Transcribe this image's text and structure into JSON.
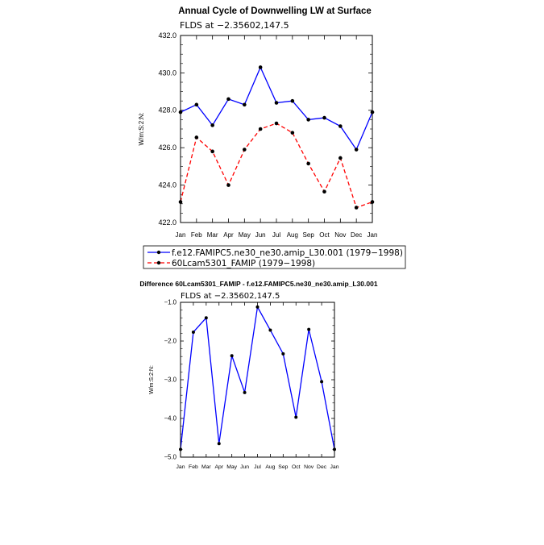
{
  "chart_data": [
    {
      "type": "line",
      "title": "Annual Cycle of Downwelling LW at Surface",
      "subtitle": "FLDS at −2.35602,147.5",
      "xlabel": "",
      "ylabel": "W/m:S:2:N:",
      "categories": [
        "Jan",
        "Feb",
        "Mar",
        "Apr",
        "May",
        "Jun",
        "Jul",
        "Aug",
        "Sep",
        "Oct",
        "Nov",
        "Dec",
        "Jan"
      ],
      "ylim": [
        422.0,
        432.0
      ],
      "yticks": [
        "422.0",
        "424.0",
        "426.0",
        "428.0",
        "430.0",
        "432.0"
      ],
      "grid": false,
      "legend_placement": "bottom",
      "series": [
        {
          "name": "f.e12.FAMIPC5.ne30_ne30.amip_L30.001 (1979−1998)",
          "color": "#0000ff",
          "dash": "solid",
          "values": [
            427.9,
            428.3,
            427.2,
            428.6,
            428.3,
            430.3,
            428.4,
            428.5,
            427.5,
            427.6,
            427.15,
            425.9,
            427.9
          ]
        },
        {
          "name": "60Lcam5301_FAMIP (1979−1998)",
          "color": "#ff0000",
          "dash": "dashed",
          "values": [
            423.1,
            426.55,
            425.8,
            424.0,
            425.9,
            427.0,
            427.3,
            426.8,
            425.15,
            423.65,
            425.45,
            422.8,
            423.1
          ]
        }
      ]
    },
    {
      "type": "line",
      "title": "Difference 60Lcam5301_FAMIP - f.e12.FAMIPC5.ne30_ne30.amip_L30.001",
      "subtitle": "FLDS at −2.35602,147.5",
      "xlabel": "",
      "ylabel": "W/m:S:2:N:",
      "categories": [
        "Jan",
        "Feb",
        "Mar",
        "Apr",
        "May",
        "Jun",
        "Jul",
        "Aug",
        "Sep",
        "Oct",
        "Nov",
        "Dec",
        "Jan"
      ],
      "ylim": [
        -5.0,
        -1.0
      ],
      "yticks": [
        "−5.0",
        "−4.0",
        "−3.0",
        "−2.0",
        "−1.0"
      ],
      "grid": false,
      "series": [
        {
          "color": "#0000ff",
          "dash": "solid",
          "values": [
            -4.8,
            -1.77,
            -1.4,
            -4.65,
            -2.38,
            -3.33,
            -1.12,
            -1.72,
            -2.33,
            -3.97,
            -1.7,
            -3.05,
            -4.8
          ]
        }
      ]
    }
  ]
}
